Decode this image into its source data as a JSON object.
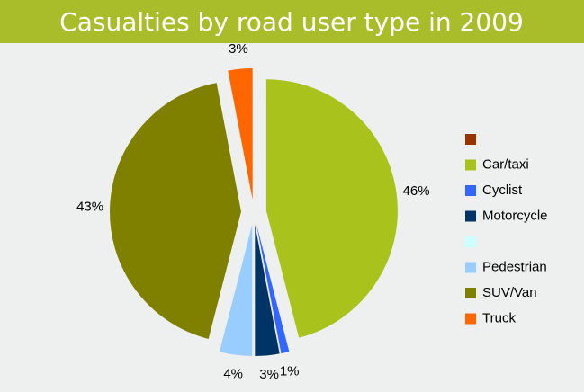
{
  "chart_data": {
    "type": "pie",
    "title": "Casualties by road user type in 2009",
    "categories": [
      null,
      "Car/taxi",
      "Cyclist",
      "Motorcycle",
      null,
      "Pedestrian",
      "SUV/Van",
      "Truck"
    ],
    "values": [
      0,
      46,
      1,
      3,
      0,
      4,
      43,
      3
    ],
    "value_labels": [
      null,
      "46%",
      "1%",
      "3%",
      null,
      "4%",
      "43%",
      "3%"
    ],
    "colors": [
      "#993300",
      "#a9c21c",
      "#3366ff",
      "#003366",
      "#ccffff",
      "#99ccff",
      "#808000",
      "#ff6600"
    ],
    "legend": "right"
  }
}
